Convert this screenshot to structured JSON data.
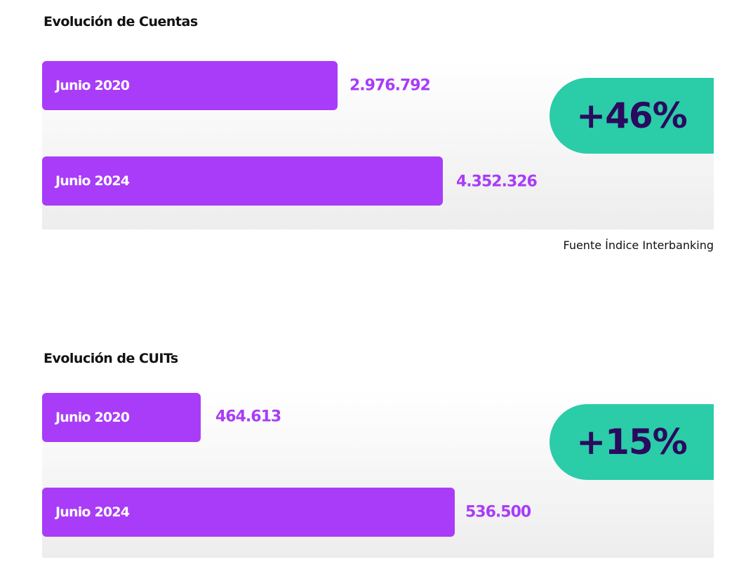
{
  "chart_data": [
    {
      "type": "bar",
      "title": "Evolución de Cuentas",
      "categories": [
        "Junio 2020",
        "Junio 2024"
      ],
      "values": [
        2976792,
        4352326
      ],
      "value_labels": [
        "2.976.792",
        "4.352.326"
      ],
      "badge": "+46%",
      "source": "Fuente Índice Interbanking"
    },
    {
      "type": "bar",
      "title": "Evolución de CUITs",
      "categories": [
        "Junio 2020",
        "Junio 2024"
      ],
      "values": [
        464613,
        536500
      ],
      "value_labels": [
        "464.613",
        "536.500"
      ],
      "badge": "+15%"
    }
  ],
  "colors": {
    "bar": "#a93cf8",
    "badge": "#2bcca8",
    "badge_text": "#2a0a5e"
  }
}
